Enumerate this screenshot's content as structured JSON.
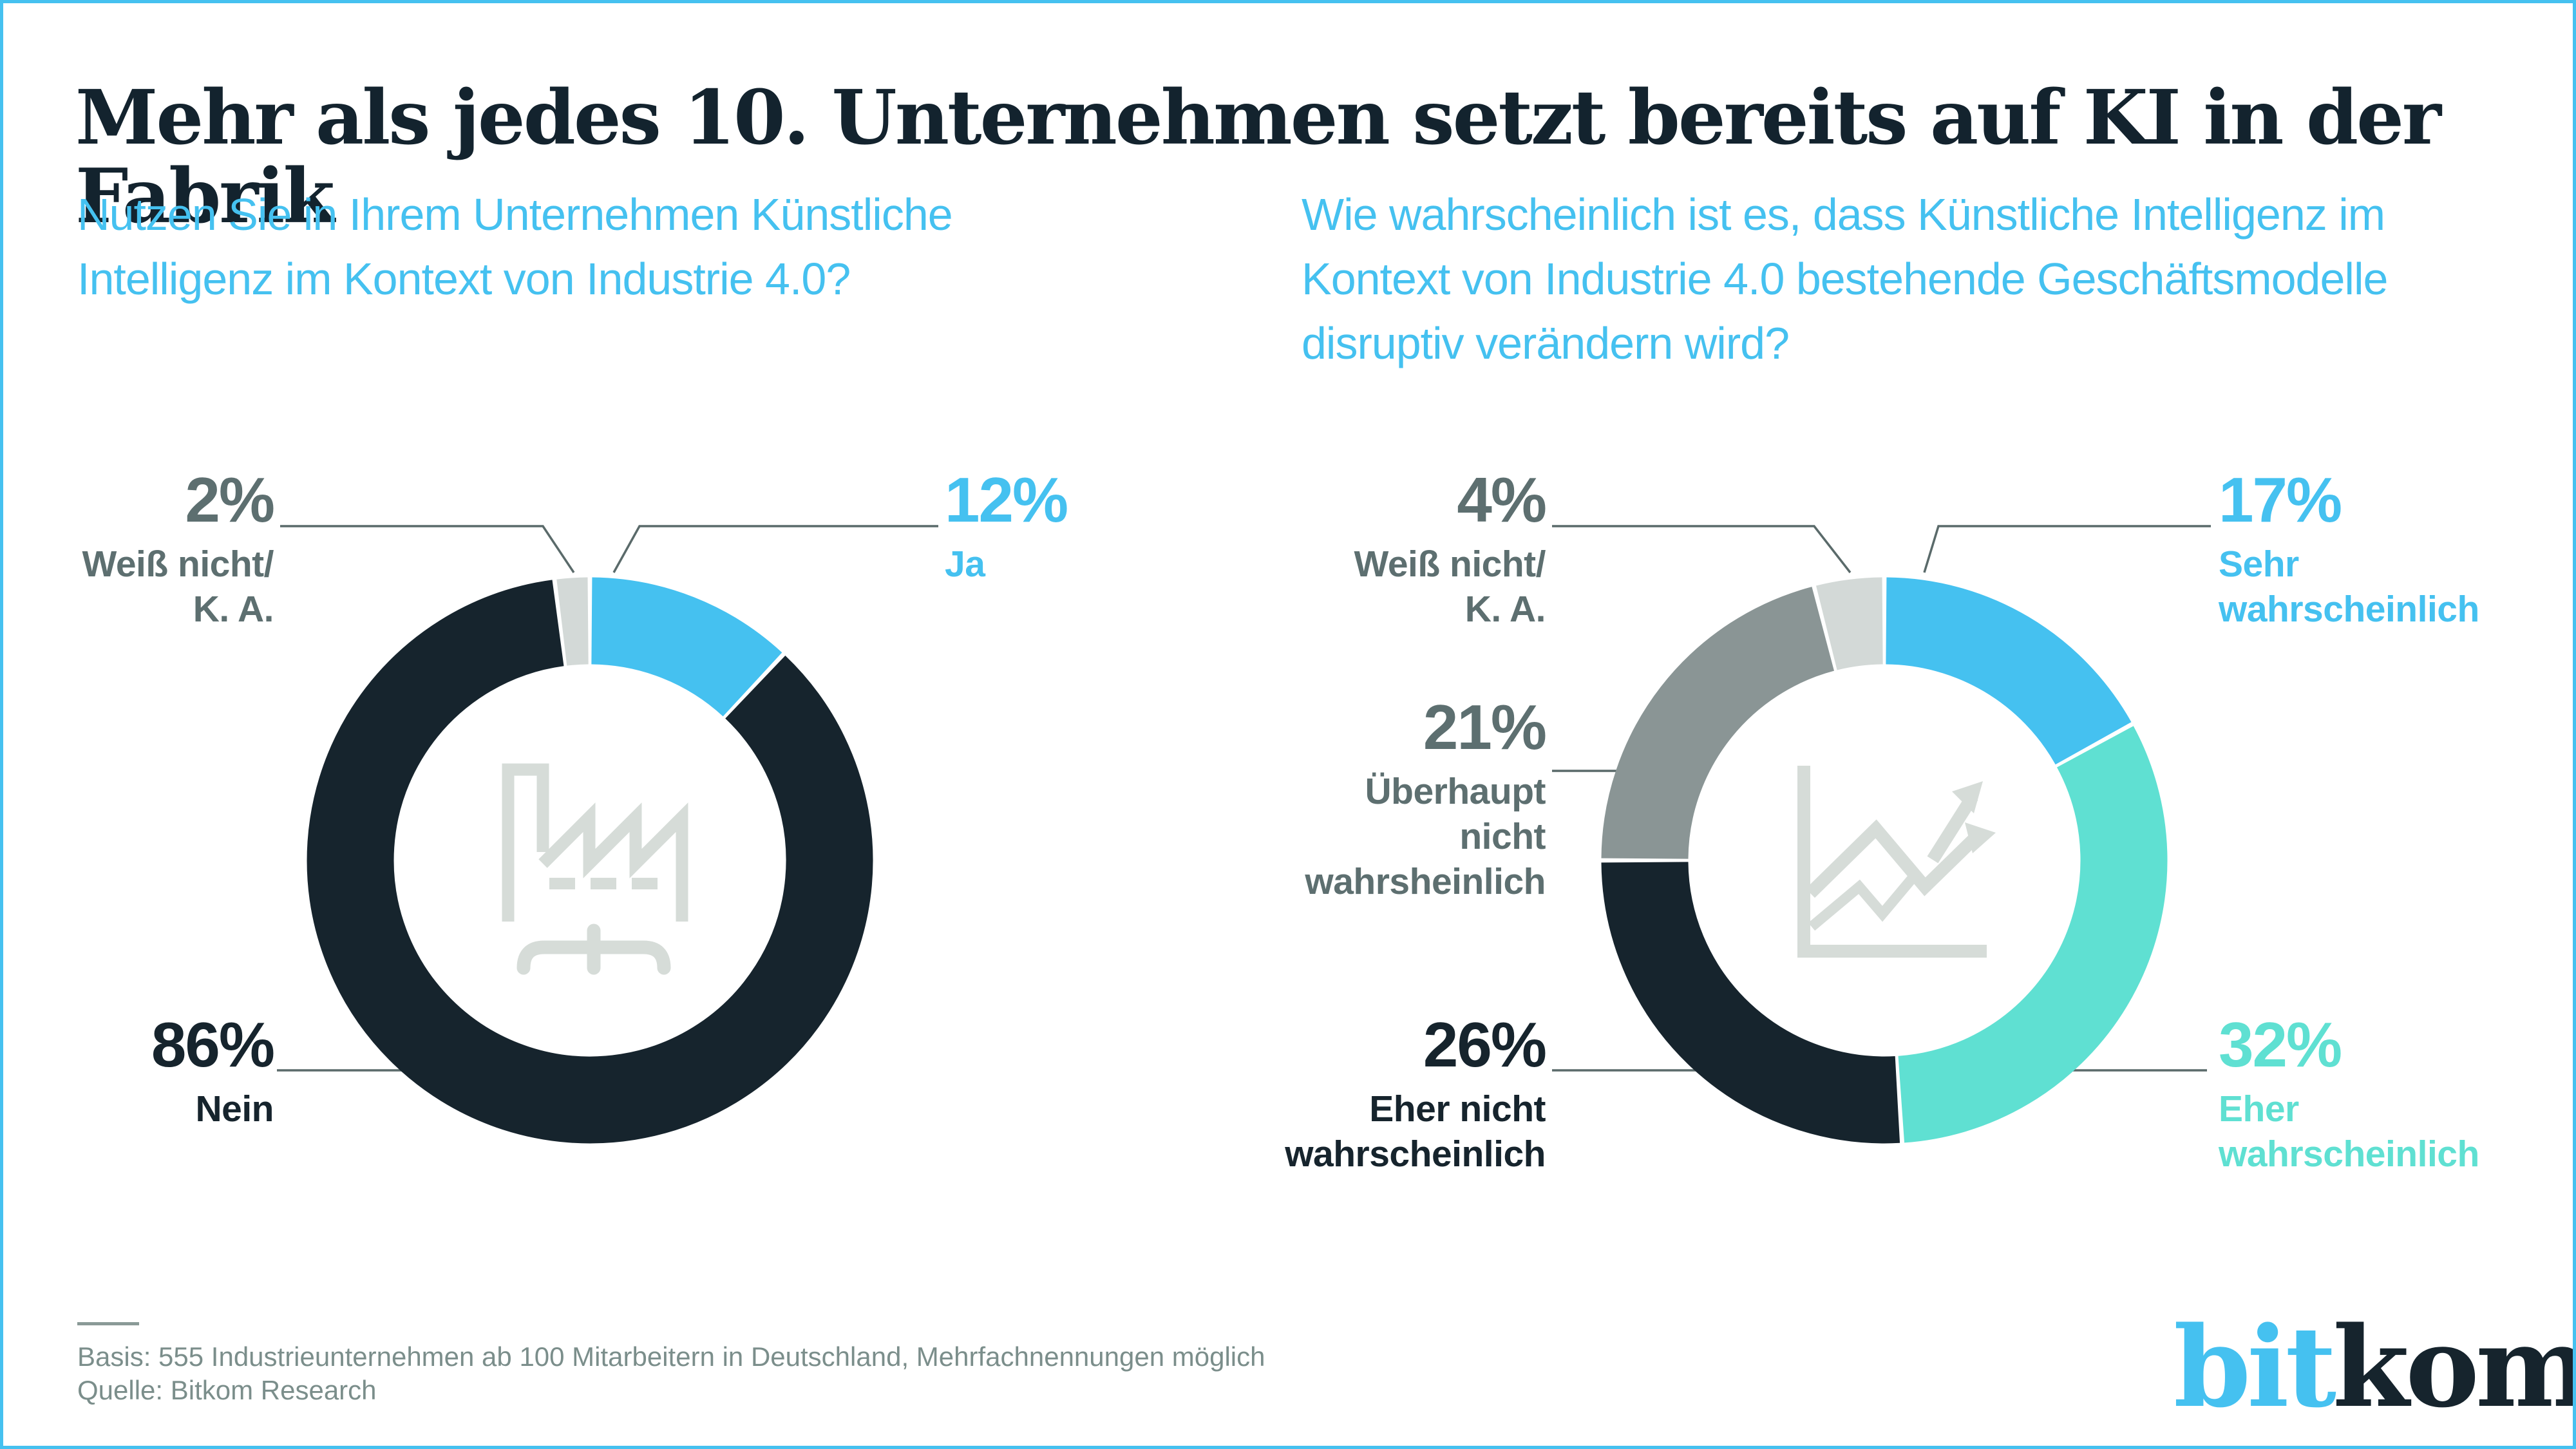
{
  "page": {
    "title": "Mehr als jedes 10. Unternehmen setzt bereits auf KI in der Fabrik",
    "border_color": "#45C1F0",
    "footer": {
      "basis": "Basis: 555 Industrieunternehmen ab 100 Mitarbeitern in Deutschland, Mehrfachnennungen möglich",
      "source": "Quelle: Bitkom Research"
    },
    "logo": {
      "part1": "bit",
      "part2": "kom"
    }
  },
  "colors": {
    "accent_blue": "#45C1F0",
    "dark_navy": "#16242D",
    "light_gray_slice": "#D3D9D7",
    "mid_gray_slice": "#8A9595",
    "turquoise": "#5FE0D2",
    "icon_gray": "#D6DCD8",
    "label_gray": "#5D6F70",
    "footer_gray": "#7B8E8B",
    "leader_line": "#5A6A6A"
  },
  "chart_data": [
    {
      "type": "pie",
      "variant": "donut",
      "question": "Nutzen Sie in Ihrem Unternehmen Künstliche Intelligenz im Kontext von Industrie 4.0?",
      "center_icon": "factory-icon",
      "legend_position": "callout-labels",
      "segments": [
        {
          "label": "Ja",
          "label_lines": [
            "Ja"
          ],
          "value": 12,
          "value_label": "12%",
          "color": "#45C1F0"
        },
        {
          "label": "Nein",
          "label_lines": [
            "Nein"
          ],
          "value": 86,
          "value_label": "86%",
          "color": "#16242D"
        },
        {
          "label": "Weiß nicht/ K. A.",
          "label_lines": [
            "Weiß nicht/",
            "K. A."
          ],
          "value": 2,
          "value_label": "2%",
          "color": "#D3D9D7"
        }
      ]
    },
    {
      "type": "pie",
      "variant": "donut",
      "question": "Wie wahrscheinlich ist es, dass Künstliche Intelligenz im Kontext von Industrie 4.0 bestehende Geschäftsmodelle disruptiv verändern wird?",
      "center_icon": "trend-chart-icon",
      "legend_position": "callout-labels",
      "segments": [
        {
          "label": "Sehr wahrscheinlich",
          "label_lines": [
            "Sehr",
            "wahrscheinlich"
          ],
          "value": 17,
          "value_label": "17%",
          "color": "#45C1F0"
        },
        {
          "label": "Eher wahrscheinlich",
          "label_lines": [
            "Eher",
            "wahrscheinlich"
          ],
          "value": 32,
          "value_label": "32%",
          "color": "#5FE0D2"
        },
        {
          "label": "Eher nicht wahrscheinlich",
          "label_lines": [
            "Eher nicht",
            "wahrscheinlich"
          ],
          "value": 26,
          "value_label": "26%",
          "color": "#16242D"
        },
        {
          "label": "Überhaupt nicht wahrsheinlich",
          "label_lines": [
            "Überhaupt",
            "nicht",
            "wahrsheinlich"
          ],
          "value": 21,
          "value_label": "21%",
          "color": "#8A9595"
        },
        {
          "label": "Weiß nicht/ K. A.",
          "label_lines": [
            "Weiß nicht/",
            "K. A."
          ],
          "value": 4,
          "value_label": "4%",
          "color": "#D3D9D7"
        }
      ]
    }
  ]
}
